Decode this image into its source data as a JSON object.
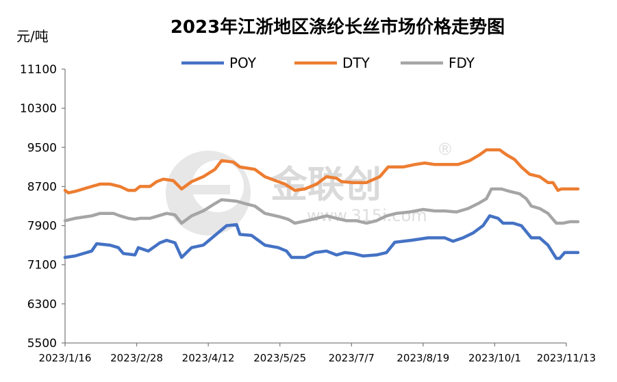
{
  "chart_data": {
    "type": "line",
    "title": "2023年江浙地区涤纶长丝市场价格走势图",
    "ylabel": "元/吨",
    "ylim": [
      5500,
      11100
    ],
    "yticks": [
      5500,
      6300,
      7100,
      7900,
      8700,
      9500,
      10300,
      11100
    ],
    "xticks": [
      "2023/1/16",
      "2023/2/28",
      "2023/4/12",
      "2023/5/25",
      "2023/7/7",
      "2023/8/19",
      "2023/10/1",
      "2023/11/13"
    ],
    "xlim": [
      "2023-01-16",
      "2023-11-13"
    ],
    "legend_position": "top",
    "grid": false,
    "series": [
      {
        "name": "POY",
        "color": "#4472C4",
        "points": [
          [
            "2023-01-16",
            7250
          ],
          [
            "2023-01-22",
            7280
          ],
          [
            "2023-02-01",
            7380
          ],
          [
            "2023-02-04",
            7530
          ],
          [
            "2023-02-12",
            7500
          ],
          [
            "2023-02-17",
            7450
          ],
          [
            "2023-02-20",
            7330
          ],
          [
            "2023-02-27",
            7300
          ],
          [
            "2023-03-01",
            7450
          ],
          [
            "2023-03-07",
            7380
          ],
          [
            "2023-03-14",
            7550
          ],
          [
            "2023-03-18",
            7600
          ],
          [
            "2023-03-23",
            7550
          ],
          [
            "2023-03-27",
            7250
          ],
          [
            "2023-04-02",
            7450
          ],
          [
            "2023-04-09",
            7500
          ],
          [
            "2023-04-16",
            7700
          ],
          [
            "2023-04-23",
            7900
          ],
          [
            "2023-04-29",
            7920
          ],
          [
            "2023-05-01",
            7720
          ],
          [
            "2023-05-08",
            7700
          ],
          [
            "2023-05-12",
            7600
          ],
          [
            "2023-05-16",
            7500
          ],
          [
            "2023-05-24",
            7450
          ],
          [
            "2023-05-29",
            7380
          ],
          [
            "2023-06-01",
            7250
          ],
          [
            "2023-06-09",
            7250
          ],
          [
            "2023-06-15",
            7350
          ],
          [
            "2023-06-22",
            7380
          ],
          [
            "2023-06-28",
            7300
          ],
          [
            "2023-07-03",
            7350
          ],
          [
            "2023-07-08",
            7330
          ],
          [
            "2023-07-14",
            7280
          ],
          [
            "2023-07-22",
            7300
          ],
          [
            "2023-07-28",
            7350
          ],
          [
            "2023-08-02",
            7560
          ],
          [
            "2023-08-12",
            7600
          ],
          [
            "2023-08-22",
            7650
          ],
          [
            "2023-09-01",
            7650
          ],
          [
            "2023-09-06",
            7580
          ],
          [
            "2023-09-12",
            7650
          ],
          [
            "2023-09-18",
            7750
          ],
          [
            "2023-09-24",
            7900
          ],
          [
            "2023-09-28",
            8100
          ],
          [
            "2023-10-03",
            8050
          ],
          [
            "2023-10-06",
            7950
          ],
          [
            "2023-10-12",
            7950
          ],
          [
            "2023-10-17",
            7900
          ],
          [
            "2023-10-23",
            7650
          ],
          [
            "2023-10-28",
            7650
          ],
          [
            "2023-11-02",
            7500
          ],
          [
            "2023-11-07",
            7230
          ],
          [
            "2023-11-09",
            7230
          ],
          [
            "2023-11-12",
            7350
          ],
          [
            "2023-11-20",
            7350
          ]
        ]
      },
      {
        "name": "DTY",
        "color": "#ED7D31",
        "points": [
          [
            "2023-01-16",
            8620
          ],
          [
            "2023-01-18",
            8570
          ],
          [
            "2023-01-22",
            8600
          ],
          [
            "2023-02-01",
            8700
          ],
          [
            "2023-02-06",
            8750
          ],
          [
            "2023-02-12",
            8750
          ],
          [
            "2023-02-18",
            8700
          ],
          [
            "2023-02-23",
            8620
          ],
          [
            "2023-02-27",
            8620
          ],
          [
            "2023-03-02",
            8700
          ],
          [
            "2023-03-08",
            8700
          ],
          [
            "2023-03-12",
            8800
          ],
          [
            "2023-03-16",
            8850
          ],
          [
            "2023-03-22",
            8820
          ],
          [
            "2023-03-27",
            8650
          ],
          [
            "2023-04-02",
            8800
          ],
          [
            "2023-04-09",
            8900
          ],
          [
            "2023-04-16",
            9050
          ],
          [
            "2023-04-20",
            9230
          ],
          [
            "2023-04-27",
            9200
          ],
          [
            "2023-05-01",
            9100
          ],
          [
            "2023-05-10",
            9050
          ],
          [
            "2023-05-16",
            8900
          ],
          [
            "2023-05-24",
            8800
          ],
          [
            "2023-05-28",
            8750
          ],
          [
            "2023-06-03",
            8620
          ],
          [
            "2023-06-09",
            8650
          ],
          [
            "2023-06-16",
            8750
          ],
          [
            "2023-06-22",
            8900
          ],
          [
            "2023-06-28",
            8870
          ],
          [
            "2023-07-01",
            8800
          ],
          [
            "2023-07-08",
            8780
          ],
          [
            "2023-07-16",
            8780
          ],
          [
            "2023-07-24",
            8900
          ],
          [
            "2023-07-29",
            9100
          ],
          [
            "2023-08-07",
            9100
          ],
          [
            "2023-08-14",
            9150
          ],
          [
            "2023-08-20",
            9180
          ],
          [
            "2023-08-26",
            9150
          ],
          [
            "2023-09-02",
            9150
          ],
          [
            "2023-09-09",
            9150
          ],
          [
            "2023-09-16",
            9230
          ],
          [
            "2023-09-22",
            9350
          ],
          [
            "2023-09-26",
            9450
          ],
          [
            "2023-10-04",
            9450
          ],
          [
            "2023-10-08",
            9350
          ],
          [
            "2023-10-13",
            9250
          ],
          [
            "2023-10-17",
            9100
          ],
          [
            "2023-10-22",
            8950
          ],
          [
            "2023-10-28",
            8900
          ],
          [
            "2023-11-02",
            8780
          ],
          [
            "2023-11-05",
            8780
          ],
          [
            "2023-11-08",
            8620
          ],
          [
            "2023-11-10",
            8650
          ],
          [
            "2023-11-20",
            8650
          ]
        ]
      },
      {
        "name": "FDY",
        "color": "#A5A5A5",
        "points": [
          [
            "2023-01-16",
            8000
          ],
          [
            "2023-01-22",
            8050
          ],
          [
            "2023-02-01",
            8100
          ],
          [
            "2023-02-06",
            8150
          ],
          [
            "2023-02-14",
            8150
          ],
          [
            "2023-02-18",
            8100
          ],
          [
            "2023-02-23",
            8050
          ],
          [
            "2023-02-27",
            8030
          ],
          [
            "2023-03-02",
            8050
          ],
          [
            "2023-03-08",
            8050
          ],
          [
            "2023-03-13",
            8100
          ],
          [
            "2023-03-18",
            8150
          ],
          [
            "2023-03-23",
            8120
          ],
          [
            "2023-03-27",
            7950
          ],
          [
            "2023-04-02",
            8100
          ],
          [
            "2023-04-09",
            8200
          ],
          [
            "2023-04-16",
            8350
          ],
          [
            "2023-04-20",
            8430
          ],
          [
            "2023-04-29",
            8400
          ],
          [
            "2023-05-04",
            8350
          ],
          [
            "2023-05-10",
            8300
          ],
          [
            "2023-05-16",
            8150
          ],
          [
            "2023-05-25",
            8080
          ],
          [
            "2023-05-30",
            8030
          ],
          [
            "2023-06-03",
            7950
          ],
          [
            "2023-06-10",
            8000
          ],
          [
            "2023-06-16",
            8050
          ],
          [
            "2023-06-22",
            8100
          ],
          [
            "2023-06-28",
            8050
          ],
          [
            "2023-07-04",
            8000
          ],
          [
            "2023-07-10",
            8000
          ],
          [
            "2023-07-16",
            7950
          ],
          [
            "2023-07-22",
            8000
          ],
          [
            "2023-07-28",
            8100
          ],
          [
            "2023-08-03",
            8150
          ],
          [
            "2023-08-11",
            8180
          ],
          [
            "2023-08-19",
            8230
          ],
          [
            "2023-08-26",
            8200
          ],
          [
            "2023-09-01",
            8200
          ],
          [
            "2023-09-08",
            8180
          ],
          [
            "2023-09-15",
            8250
          ],
          [
            "2023-09-21",
            8350
          ],
          [
            "2023-09-26",
            8450
          ],
          [
            "2023-09-29",
            8650
          ],
          [
            "2023-10-05",
            8650
          ],
          [
            "2023-10-10",
            8600
          ],
          [
            "2023-10-16",
            8550
          ],
          [
            "2023-10-20",
            8450
          ],
          [
            "2023-10-23",
            8300
          ],
          [
            "2023-10-28",
            8250
          ],
          [
            "2023-11-02",
            8150
          ],
          [
            "2023-11-07",
            7950
          ],
          [
            "2023-11-11",
            7950
          ],
          [
            "2023-11-15",
            7980
          ],
          [
            "2023-11-20",
            7980
          ]
        ]
      }
    ]
  },
  "watermark": {
    "brand": "金联创",
    "registered": "®",
    "site": "www.315i.com"
  }
}
